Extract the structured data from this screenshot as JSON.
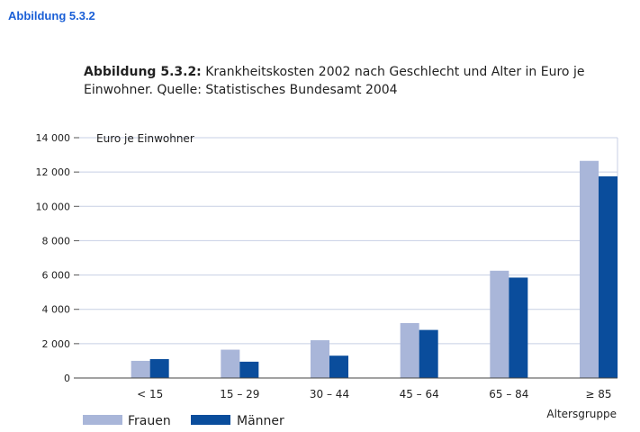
{
  "page": {
    "heading": "Abbildung 5.3.2"
  },
  "caption": {
    "label": "Abbildung 5.3.2:",
    "line1": " Krankheitskosten 2002 nach Geschlecht und Alter in Euro je",
    "line2": "Einwohner. Quelle: Statistisches Bundesamt 2004"
  },
  "chart_data": {
    "type": "bar",
    "categories": [
      "< 15",
      "15 – 29",
      "30 – 44",
      "45 – 64",
      "65 – 84",
      "≥ 85"
    ],
    "series": [
      {
        "name": "Frauen",
        "values": [
          1000,
          1650,
          2200,
          3200,
          6250,
          12650
        ],
        "color": "#a9b6d9"
      },
      {
        "name": "Männer",
        "values": [
          1100,
          950,
          1300,
          2800,
          5850,
          11750
        ],
        "color": "#0a4d9c"
      }
    ],
    "ylabel": "Euro je Einwohner",
    "xlabel": "Altersgruppe",
    "ylim": [
      0,
      14000
    ],
    "yticks": [
      0,
      2000,
      4000,
      6000,
      8000,
      10000,
      12000,
      14000
    ],
    "ytick_labels": [
      "0",
      "2 000",
      "4 000",
      "6 000",
      "8 000",
      "10 000",
      "12 000",
      "14 000"
    ],
    "grid": true,
    "legend": "bottom-left"
  }
}
